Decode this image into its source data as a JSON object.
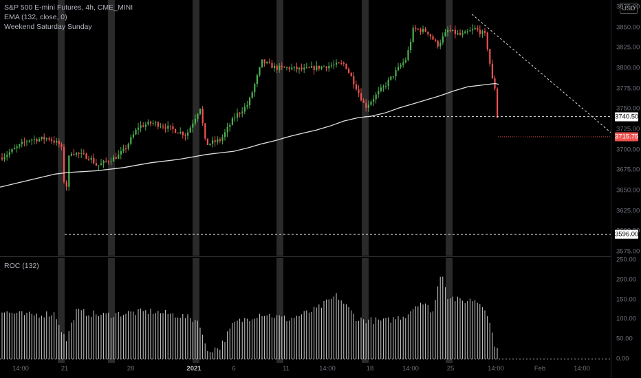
{
  "legend": {
    "symbol": "S&P 500 E-mini Futures, 4h, CME_MINI",
    "ema": "EMA (132, close, 0)",
    "session": "Weekend Saturday Sunday"
  },
  "roc_label": "ROC (132)",
  "currency": "USD",
  "price_axis": [
    "3875.00",
    "3850.00",
    "3825.00",
    "3800.00",
    "3775.00",
    "3750.00",
    "3725.00",
    "3700.00",
    "3675.00",
    "3650.00",
    "3625.00",
    "3600.00",
    "3575.00"
  ],
  "price_axis_values": [
    3875,
    3850,
    3825,
    3800,
    3775,
    3750,
    3725,
    3700,
    3675,
    3650,
    3625,
    3600,
    3575
  ],
  "roc_axis": [
    "250.00",
    "200.00",
    "150.00",
    "100.00",
    "50.00",
    "0.00"
  ],
  "roc_axis_values": [
    250,
    200,
    150,
    100,
    50,
    0
  ],
  "time_axis": [
    {
      "label": "14:00",
      "bold": false
    },
    {
      "label": "21",
      "bold": false
    },
    {
      "label": "28",
      "bold": false
    },
    {
      "label": "2021",
      "bold": true
    },
    {
      "label": "6",
      "bold": false
    },
    {
      "label": "11",
      "bold": false
    },
    {
      "label": "14:00",
      "bold": false
    },
    {
      "label": "18",
      "bold": false
    },
    {
      "label": "14:00",
      "bold": false
    },
    {
      "label": "25",
      "bold": false
    },
    {
      "label": "14:00",
      "bold": false
    },
    {
      "label": "Feb",
      "bold": false
    },
    {
      "label": "14:00",
      "bold": false
    }
  ],
  "price_badges": {
    "level_high": "3740.50",
    "last_price": "3715.75",
    "level_low": "3596.00"
  },
  "price_levels": {
    "level_high": 3740.5,
    "last_price": 3715.75,
    "level_low": 3596.0
  },
  "colors": {
    "up": "#26a69a",
    "up_candle": "#4caf50",
    "down": "#ef5350",
    "ema": "#e0e0e0",
    "weekend": "#2a2a2a",
    "grid": "#1a1a1a"
  },
  "chart_data": {
    "type": "candlestick",
    "price_range": [
      3570,
      3880
    ],
    "roc_range": [
      -10,
      255
    ],
    "ema_path": [
      [
        0,
        3654
      ],
      [
        20,
        3658
      ],
      [
        40,
        3662
      ],
      [
        60,
        3666
      ],
      [
        80,
        3670
      ],
      [
        100,
        3672
      ],
      [
        120,
        3673
      ],
      [
        140,
        3674
      ],
      [
        160,
        3676
      ],
      [
        180,
        3678
      ],
      [
        200,
        3681
      ],
      [
        220,
        3684
      ],
      [
        240,
        3686
      ],
      [
        260,
        3688
      ],
      [
        280,
        3691
      ],
      [
        300,
        3694
      ],
      [
        320,
        3696
      ],
      [
        340,
        3698
      ],
      [
        360,
        3702
      ],
      [
        380,
        3707
      ],
      [
        400,
        3711
      ],
      [
        420,
        3716
      ],
      [
        440,
        3720
      ],
      [
        460,
        3724
      ],
      [
        480,
        3729
      ],
      [
        500,
        3735
      ],
      [
        520,
        3739
      ],
      [
        540,
        3741
      ],
      [
        560,
        3745
      ],
      [
        580,
        3751
      ],
      [
        600,
        3756
      ],
      [
        620,
        3761
      ],
      [
        640,
        3766
      ],
      [
        660,
        3772
      ],
      [
        680,
        3777
      ],
      [
        700,
        3779
      ],
      [
        720,
        3781
      ],
      [
        725,
        3780
      ]
    ],
    "weekend_bands": [
      [
        84,
        94
      ],
      [
        157,
        167
      ],
      [
        280,
        290
      ],
      [
        402,
        412
      ],
      [
        526,
        536
      ],
      [
        648,
        658
      ]
    ],
    "resistance_line": {
      "from": [
        686,
        3866
      ],
      "to": [
        888,
        3721
      ]
    }
  }
}
